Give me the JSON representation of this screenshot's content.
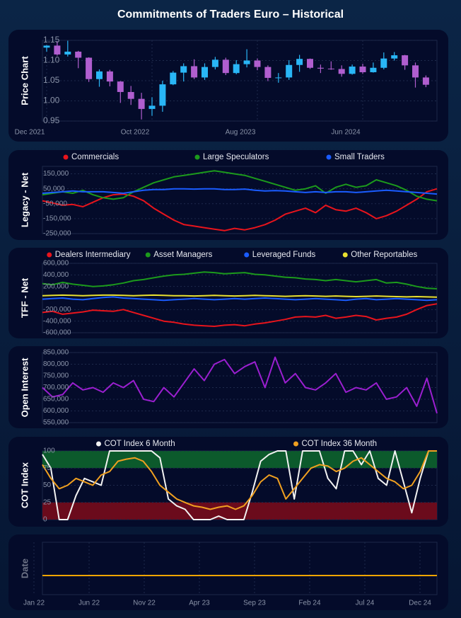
{
  "title": "Commitments of Traders Euro – Historical",
  "chart_data": [
    {
      "type": "candlestick",
      "ylabel": "Price Chart",
      "up_color": "#29b6f6",
      "down_color": "#b05ecf",
      "categories": [
        "Dec 2021",
        null,
        null,
        null,
        null,
        null,
        null,
        null,
        null,
        null,
        "Oct 2022",
        null,
        null,
        null,
        null,
        null,
        null,
        null,
        null,
        null,
        "Aug 2023",
        null,
        null,
        null,
        null,
        null,
        null,
        null,
        null,
        null,
        "Jun 2024",
        null,
        null,
        null,
        null,
        null,
        null
      ],
      "open": [
        1.132,
        1.137,
        1.115,
        1.122,
        1.107,
        1.054,
        1.073,
        1.048,
        1.022,
        1.005,
        0.98,
        0.988,
        1.041,
        1.07,
        1.086,
        1.058,
        1.084,
        1.102,
        1.069,
        1.091,
        1.1,
        1.084,
        1.057,
        1.058,
        1.089,
        1.104,
        1.082,
        1.08,
        1.079,
        1.067,
        1.085,
        1.071,
        1.082,
        1.105,
        1.113,
        1.088,
        1.058
      ],
      "high": [
        1.138,
        1.148,
        1.149,
        1.124,
        1.108,
        1.078,
        1.077,
        1.049,
        1.037,
        1.02,
        1.009,
        1.05,
        1.074,
        1.093,
        1.103,
        1.093,
        1.109,
        1.107,
        1.101,
        1.128,
        1.105,
        1.088,
        1.069,
        1.101,
        1.114,
        1.105,
        1.09,
        1.098,
        1.088,
        1.09,
        1.092,
        1.095,
        1.12,
        1.121,
        1.114,
        1.095,
        1.063
      ],
      "low": [
        1.122,
        1.112,
        1.11,
        1.081,
        1.047,
        1.035,
        1.036,
        0.995,
        0.99,
        0.954,
        0.963,
        0.973,
        1.039,
        1.048,
        1.054,
        1.052,
        1.078,
        1.064,
        1.066,
        1.083,
        1.076,
        1.049,
        1.045,
        1.052,
        1.072,
        1.079,
        1.069,
        1.077,
        1.06,
        1.065,
        1.067,
        1.07,
        1.078,
        1.1,
        1.077,
        1.033,
        1.034
      ],
      "close": [
        1.137,
        1.115,
        1.122,
        1.107,
        1.054,
        1.073,
        1.048,
        1.022,
        1.005,
        0.98,
        0.988,
        1.041,
        1.07,
        1.086,
        1.058,
        1.084,
        1.102,
        1.069,
        1.091,
        1.1,
        1.084,
        1.057,
        1.058,
        1.089,
        1.104,
        1.082,
        1.08,
        1.079,
        1.067,
        1.085,
        1.071,
        1.082,
        1.105,
        1.113,
        1.088,
        1.058,
        1.04
      ],
      "ylim": [
        0.95,
        1.15
      ],
      "yticks": [
        1.15,
        {
          "value": 1.1,
          "label": "1.10"
        },
        1.05,
        {
          "value": 1.0,
          "label": "1.00"
        },
        0.95
      ]
    },
    {
      "type": "line",
      "ylabel": "Legacy - Net",
      "ylim": [
        -250000,
        200000
      ],
      "yticks": [
        {
          "value": 150000,
          "label": "150,000"
        },
        {
          "value": 50000,
          "label": "50,000"
        },
        {
          "value": -50000,
          "label": "-50,000"
        },
        {
          "value": -150000,
          "label": "-150,000"
        },
        {
          "value": -250000,
          "label": "-250,000"
        }
      ],
      "series": [
        {
          "name": "Commercials",
          "color": "#e8141c",
          "values": [
            -30000,
            -45000,
            -60000,
            -55000,
            -70000,
            -40000,
            -10000,
            10000,
            15000,
            0,
            -30000,
            -80000,
            -120000,
            -160000,
            -190000,
            -200000,
            -210000,
            -220000,
            -230000,
            -215000,
            -225000,
            -210000,
            -190000,
            -160000,
            -120000,
            -100000,
            -80000,
            -110000,
            -60000,
            -90000,
            -100000,
            -80000,
            -110000,
            -150000,
            -130000,
            -100000,
            -60000,
            -20000,
            30000,
            50000
          ]
        },
        {
          "name": "Large Speculators",
          "color": "#1c9a1c",
          "values": [
            10000,
            20000,
            30000,
            20000,
            40000,
            10000,
            -10000,
            -20000,
            -10000,
            30000,
            60000,
            90000,
            110000,
            130000,
            140000,
            150000,
            160000,
            170000,
            160000,
            150000,
            140000,
            120000,
            100000,
            80000,
            60000,
            40000,
            50000,
            70000,
            20000,
            60000,
            80000,
            60000,
            70000,
            110000,
            90000,
            70000,
            40000,
            0,
            -20000,
            -30000
          ]
        },
        {
          "name": "Small Traders",
          "color": "#1a5cff",
          "values": [
            20000,
            25000,
            30000,
            35000,
            30000,
            30000,
            30000,
            25000,
            20000,
            30000,
            40000,
            45000,
            45000,
            50000,
            50000,
            48000,
            50000,
            50000,
            45000,
            45000,
            48000,
            40000,
            35000,
            38000,
            35000,
            30000,
            25000,
            30000,
            25000,
            30000,
            30000,
            25000,
            30000,
            35000,
            40000,
            35000,
            30000,
            25000,
            20000,
            15000
          ]
        }
      ]
    },
    {
      "type": "line",
      "ylabel": "TFF - Net",
      "ylim": [
        -600000,
        600000
      ],
      "yticks": [
        {
          "value": 600000,
          "label": "600,000"
        },
        {
          "value": 400000,
          "label": "400,000"
        },
        {
          "value": 200000,
          "label": "200,000"
        },
        {
          "value": -200000,
          "label": "-200,000"
        },
        {
          "value": -400000,
          "label": "-400,000"
        },
        {
          "value": -600000,
          "label": "-600,000"
        }
      ],
      "series": [
        {
          "name": "Dealers Intermediary",
          "color": "#e8141c",
          "values": [
            -250000,
            -230000,
            -280000,
            -260000,
            -240000,
            -210000,
            -220000,
            -230000,
            -200000,
            -250000,
            -300000,
            -350000,
            -400000,
            -420000,
            -450000,
            -470000,
            -480000,
            -490000,
            -470000,
            -460000,
            -480000,
            -450000,
            -430000,
            -400000,
            -370000,
            -330000,
            -320000,
            -330000,
            -300000,
            -350000,
            -330000,
            -300000,
            -320000,
            -380000,
            -350000,
            -330000,
            -280000,
            -200000,
            -130000,
            -100000
          ]
        },
        {
          "name": "Asset Managers",
          "color": "#1c9a1c",
          "values": [
            250000,
            230000,
            270000,
            240000,
            220000,
            200000,
            210000,
            230000,
            260000,
            300000,
            320000,
            350000,
            380000,
            400000,
            410000,
            430000,
            450000,
            440000,
            420000,
            430000,
            440000,
            410000,
            400000,
            380000,
            360000,
            350000,
            330000,
            320000,
            300000,
            320000,
            300000,
            280000,
            300000,
            320000,
            260000,
            270000,
            240000,
            200000,
            170000,
            160000
          ]
        },
        {
          "name": "Leveraged Funds",
          "color": "#1a5cff",
          "values": [
            -20000,
            -10000,
            0,
            -20000,
            -30000,
            -10000,
            10000,
            20000,
            0,
            -10000,
            -20000,
            -30000,
            -40000,
            -30000,
            -20000,
            -10000,
            -20000,
            -30000,
            -20000,
            -10000,
            -20000,
            -10000,
            0,
            -10000,
            -20000,
            -30000,
            -20000,
            -10000,
            -20000,
            -30000,
            -40000,
            -20000,
            -10000,
            -30000,
            -20000,
            -10000,
            -20000,
            -30000,
            -40000,
            -30000
          ]
        },
        {
          "name": "Other Reportables",
          "color": "#e8e030",
          "values": [
            40000,
            45000,
            50000,
            45000,
            40000,
            45000,
            50000,
            50000,
            45000,
            40000,
            45000,
            50000,
            45000,
            40000,
            40000,
            35000,
            40000,
            45000,
            40000,
            35000,
            40000,
            45000,
            40000,
            35000,
            30000,
            35000,
            40000,
            35000,
            30000,
            35000,
            30000,
            25000,
            30000,
            35000,
            30000,
            25000,
            20000,
            25000,
            20000,
            15000
          ]
        }
      ]
    },
    {
      "type": "line",
      "ylabel": "Open Interest",
      "ylim": [
        550000,
        850000
      ],
      "yticks": [
        {
          "value": 850000,
          "label": "850,000"
        },
        {
          "value": 800000,
          "label": "800,000"
        },
        {
          "value": 750000,
          "label": "750,000"
        },
        {
          "value": 700000,
          "label": "700,000"
        },
        {
          "value": 650000,
          "label": "650,000"
        },
        {
          "value": 600000,
          "label": "600,000"
        },
        {
          "value": 550000,
          "label": "550,000"
        }
      ],
      "series": [
        {
          "color": "#9b1fd0",
          "values": [
            700000,
            660000,
            670000,
            720000,
            690000,
            700000,
            680000,
            720000,
            700000,
            730000,
            650000,
            640000,
            700000,
            660000,
            720000,
            780000,
            730000,
            800000,
            820000,
            760000,
            790000,
            810000,
            700000,
            830000,
            720000,
            760000,
            700000,
            690000,
            720000,
            760000,
            680000,
            700000,
            690000,
            720000,
            650000,
            660000,
            700000,
            620000,
            740000,
            590000
          ]
        }
      ]
    },
    {
      "type": "line",
      "ylabel": "COT Index",
      "ylim": [
        0,
        100
      ],
      "yticks": [
        100,
        75,
        50,
        25,
        0
      ],
      "zones": [
        {
          "from": 75,
          "to": 100,
          "color": "#0c5a2c"
        },
        {
          "from": 0,
          "to": 25,
          "color": "#6b0b1c"
        }
      ],
      "series": [
        {
          "name": "COT Index 6 Month",
          "color": "#f2f2f2",
          "values": [
            95,
            75,
            0,
            0,
            35,
            60,
            55,
            50,
            100,
            100,
            100,
            100,
            100,
            100,
            90,
            30,
            20,
            15,
            0,
            0,
            0,
            5,
            0,
            0,
            0,
            40,
            85,
            95,
            100,
            100,
            30,
            100,
            100,
            100,
            60,
            45,
            100,
            100,
            80,
            100,
            60,
            50,
            100,
            55,
            10,
            60,
            100,
            100
          ]
        },
        {
          "name": "COT Index 36 Month",
          "color": "#f0a020",
          "values": [
            80,
            60,
            45,
            50,
            60,
            55,
            50,
            65,
            70,
            85,
            88,
            90,
            85,
            70,
            50,
            40,
            30,
            25,
            20,
            18,
            15,
            18,
            20,
            15,
            20,
            35,
            55,
            65,
            60,
            30,
            45,
            60,
            75,
            80,
            78,
            70,
            75,
            85,
            90,
            80,
            70,
            60,
            55,
            45,
            50,
            70,
            100,
            100
          ]
        }
      ]
    },
    {
      "type": "timeline",
      "ylabel": "Date",
      "color": "#f0a500",
      "categories": [
        "Jan 22",
        "Jun 22",
        "Nov 22",
        "Apr 23",
        "Sep 23",
        "Feb 24",
        "Jul 24",
        "Dec 24"
      ]
    }
  ]
}
